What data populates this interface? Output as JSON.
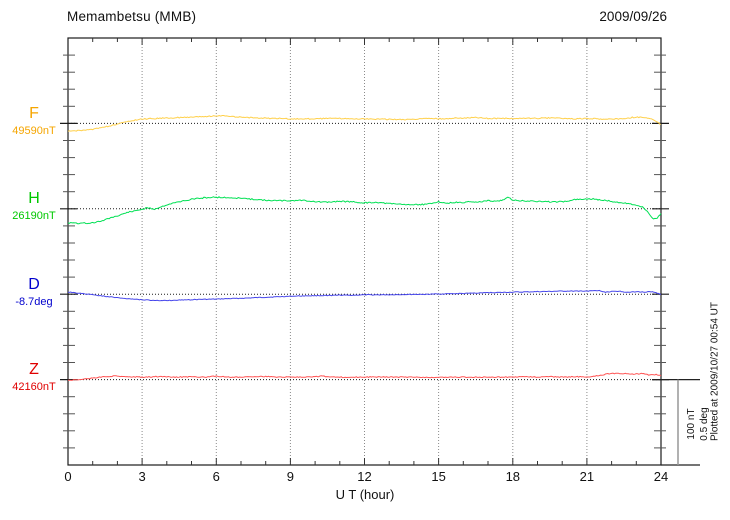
{
  "figure": {
    "title": "Memambetsu (MMB)",
    "date": "2009/09/26",
    "plotted_at": "Plotted at 2009/10/27 00:54 UT"
  },
  "chart_data": {
    "type": "line",
    "title": "Memambetsu (MMB)",
    "date": "2009/09/26",
    "xlabel": "U T (hour)",
    "x_range": [
      0,
      24
    ],
    "x_tick_labels": [
      "0",
      "3",
      "6",
      "9",
      "12",
      "15",
      "18",
      "21",
      "24"
    ],
    "x_major_tick_hours": 3,
    "x_minor_tick_hours": 1,
    "grid": {
      "vertical_dotted_every_hours": 3,
      "horizontal_dotted_baseline_per_channel": true
    },
    "scale_bar": {
      "amplitude_nt": "100 nT",
      "amplitude_deg": "0.5 deg",
      "nt_per_minor_division": 20
    },
    "plotted_at": "Plotted at 2009/10/27 00:54 UT",
    "points_format": "[UT hour, offset from baseline_value in series unit]",
    "series": [
      {
        "name": "F",
        "unit": "nT",
        "baseline_label": "49590nT",
        "baseline_value": 49590,
        "label_color": "#f5a500",
        "trace_color": "#ffd04a",
        "points": [
          [
            0,
            -9.4
          ],
          [
            0.5,
            -8.5
          ],
          [
            1,
            -6.8
          ],
          [
            1.5,
            -4.1
          ],
          [
            2,
            -0.8
          ],
          [
            2.5,
            2.7
          ],
          [
            3,
            5.1
          ],
          [
            3.5,
            5.7
          ],
          [
            4,
            6.3
          ],
          [
            4.5,
            6.9
          ],
          [
            5,
            7.4
          ],
          [
            5.5,
            8.0
          ],
          [
            6,
            8.6
          ],
          [
            6.3,
            9.0
          ],
          [
            6.6,
            8.2
          ],
          [
            7,
            7.2
          ],
          [
            7.5,
            6.6
          ],
          [
            8,
            6.0
          ],
          [
            8.5,
            5.9
          ],
          [
            9,
            5.3
          ],
          [
            9.5,
            5.3
          ],
          [
            10,
            5.4
          ],
          [
            10.5,
            5.8
          ],
          [
            11,
            5.9
          ],
          [
            11.5,
            5.4
          ],
          [
            12,
            5.3
          ],
          [
            12.5,
            4.8
          ],
          [
            13,
            4.7
          ],
          [
            13.5,
            4.6
          ],
          [
            14,
            4.7
          ],
          [
            14.5,
            5.8
          ],
          [
            15,
            5.3
          ],
          [
            15.5,
            5.9
          ],
          [
            16,
            6.4
          ],
          [
            16.5,
            7.0
          ],
          [
            17,
            5.9
          ],
          [
            17.5,
            5.8
          ],
          [
            18,
            5.9
          ],
          [
            18.5,
            6.0
          ],
          [
            19,
            5.9
          ],
          [
            19.5,
            6.4
          ],
          [
            20,
            5.9
          ],
          [
            20.5,
            5.3
          ],
          [
            21,
            5.9
          ],
          [
            21.5,
            5.3
          ],
          [
            22,
            4.7
          ],
          [
            22.5,
            5.9
          ],
          [
            23,
            7.5
          ],
          [
            23.3,
            7.0
          ],
          [
            23.6,
            5.3
          ],
          [
            23.8,
            2.4
          ],
          [
            24,
            -1.2
          ]
        ]
      },
      {
        "name": "H",
        "unit": "nT",
        "baseline_label": "26190nT",
        "baseline_value": 26190,
        "label_color": "#00c800",
        "trace_color": "#00e053",
        "points": [
          [
            0,
            -16.4
          ],
          [
            0.5,
            -17.0
          ],
          [
            1,
            -16.4
          ],
          [
            1.5,
            -12.9
          ],
          [
            2,
            -8.2
          ],
          [
            2.5,
            -3.5
          ],
          [
            3,
            -0.6
          ],
          [
            3.2,
            1.2
          ],
          [
            3.5,
            -0.5
          ],
          [
            4,
            4.7
          ],
          [
            4.5,
            8.2
          ],
          [
            5,
            11.2
          ],
          [
            5.5,
            12.9
          ],
          [
            6,
            13.5
          ],
          [
            6.5,
            12.9
          ],
          [
            7,
            12.3
          ],
          [
            7.5,
            11.2
          ],
          [
            8,
            10.0
          ],
          [
            8.5,
            9.4
          ],
          [
            9,
            9.4
          ],
          [
            9.5,
            10.0
          ],
          [
            10,
            8.2
          ],
          [
            10.5,
            7.6
          ],
          [
            11,
            8.8
          ],
          [
            11.5,
            8.2
          ],
          [
            12,
            7.0
          ],
          [
            12.5,
            7.6
          ],
          [
            13,
            5.9
          ],
          [
            13.5,
            5.3
          ],
          [
            14,
            4.7
          ],
          [
            14.5,
            5.3
          ],
          [
            15,
            8.2
          ],
          [
            15.3,
            6.5
          ],
          [
            15.6,
            7.6
          ],
          [
            16,
            7.0
          ],
          [
            16.3,
            8.8
          ],
          [
            16.6,
            7.6
          ],
          [
            17,
            10.0
          ],
          [
            17.3,
            8.8
          ],
          [
            17.6,
            10.0
          ],
          [
            17.8,
            13.5
          ],
          [
            18,
            10.0
          ],
          [
            18.5,
            9.4
          ],
          [
            19,
            8.8
          ],
          [
            19.5,
            8.2
          ],
          [
            20,
            8.2
          ],
          [
            20.5,
            10.6
          ],
          [
            21,
            11.2
          ],
          [
            21.3,
            11.7
          ],
          [
            21.5,
            10.6
          ],
          [
            22,
            8.8
          ],
          [
            22.5,
            7.0
          ],
          [
            23,
            4.7
          ],
          [
            23.3,
            1.2
          ],
          [
            23.5,
            -4.7
          ],
          [
            23.7,
            -12.3
          ],
          [
            23.85,
            -10.6
          ],
          [
            24,
            -5.9
          ]
        ]
      },
      {
        "name": "D",
        "unit": "deg",
        "baseline_label": "-8.7deg",
        "baseline_value": -8.7,
        "label_color": "#0000cd",
        "trace_color": "#4646eb",
        "points": [
          [
            0,
            0.012
          ],
          [
            0.5,
            0.006
          ],
          [
            1,
            -0.003
          ],
          [
            1.5,
            -0.012
          ],
          [
            2,
            -0.021
          ],
          [
            2.5,
            -0.027
          ],
          [
            3,
            -0.032
          ],
          [
            3.5,
            -0.036
          ],
          [
            4,
            -0.038
          ],
          [
            4.5,
            -0.035
          ],
          [
            5,
            -0.032
          ],
          [
            5.5,
            -0.03
          ],
          [
            6,
            -0.029
          ],
          [
            6.5,
            -0.026
          ],
          [
            7,
            -0.024
          ],
          [
            7.5,
            -0.021
          ],
          [
            8,
            -0.018
          ],
          [
            8.5,
            -0.015
          ],
          [
            9,
            -0.012
          ],
          [
            9.5,
            -0.01
          ],
          [
            10,
            -0.009
          ],
          [
            10.5,
            -0.007
          ],
          [
            11,
            -0.006
          ],
          [
            11.5,
            -0.006
          ],
          [
            12,
            -0.004
          ],
          [
            12.5,
            -0.004
          ],
          [
            13,
            -0.003
          ],
          [
            13.5,
            -0.002
          ],
          [
            14,
            -0.001
          ],
          [
            14.5,
            0.0
          ],
          [
            15,
            0.001
          ],
          [
            15.5,
            0.003
          ],
          [
            16,
            0.004
          ],
          [
            16.5,
            0.007
          ],
          [
            17,
            0.009
          ],
          [
            17.5,
            0.01
          ],
          [
            18,
            0.012
          ],
          [
            18.5,
            0.013
          ],
          [
            19,
            0.015
          ],
          [
            19.5,
            0.016
          ],
          [
            20,
            0.018
          ],
          [
            20.5,
            0.018
          ],
          [
            21,
            0.019
          ],
          [
            21.5,
            0.021
          ],
          [
            21.7,
            0.012
          ],
          [
            22,
            0.015
          ],
          [
            22.3,
            0.018
          ],
          [
            22.6,
            0.012
          ],
          [
            23,
            0.015
          ],
          [
            23.3,
            0.012
          ],
          [
            23.6,
            0.015
          ],
          [
            23.8,
            0.009
          ],
          [
            24,
            -0.003
          ]
        ]
      },
      {
        "name": "Z",
        "unit": "nT",
        "baseline_label": "42160nT",
        "baseline_value": 42160,
        "label_color": "#e00000",
        "trace_color": "#ff5353",
        "points": [
          [
            0,
            -0.6
          ],
          [
            0.5,
            0.0
          ],
          [
            1,
            1.8
          ],
          [
            1.5,
            3.5
          ],
          [
            2,
            4.1
          ],
          [
            2.5,
            3.5
          ],
          [
            3,
            2.9
          ],
          [
            3.5,
            3.5
          ],
          [
            4,
            3.5
          ],
          [
            4.5,
            2.9
          ],
          [
            5,
            3.5
          ],
          [
            5.5,
            2.9
          ],
          [
            6,
            4.1
          ],
          [
            6.5,
            2.9
          ],
          [
            7,
            2.9
          ],
          [
            7.5,
            3.5
          ],
          [
            8,
            3.5
          ],
          [
            8.5,
            2.9
          ],
          [
            9,
            2.9
          ],
          [
            9.5,
            3.1
          ],
          [
            10,
            3.5
          ],
          [
            10.3,
            4.1
          ],
          [
            10.6,
            2.9
          ],
          [
            11,
            2.9
          ],
          [
            11.5,
            2.9
          ],
          [
            12,
            2.9
          ],
          [
            12.5,
            3.1
          ],
          [
            13,
            2.9
          ],
          [
            13.5,
            2.9
          ],
          [
            14,
            2.9
          ],
          [
            14.5,
            2.6
          ],
          [
            15,
            2.4
          ],
          [
            15.5,
            2.9
          ],
          [
            16,
            2.9
          ],
          [
            16.5,
            2.9
          ],
          [
            17,
            2.9
          ],
          [
            17.5,
            2.9
          ],
          [
            18,
            2.9
          ],
          [
            18.5,
            3.5
          ],
          [
            19,
            2.9
          ],
          [
            19.5,
            3.5
          ],
          [
            20,
            2.9
          ],
          [
            20.5,
            3.5
          ],
          [
            21,
            2.9
          ],
          [
            21.5,
            4.7
          ],
          [
            21.8,
            6.5
          ],
          [
            22,
            7.1
          ],
          [
            22.5,
            7.1
          ],
          [
            23,
            6.5
          ],
          [
            23.3,
            7.1
          ],
          [
            23.5,
            5.3
          ],
          [
            23.8,
            5.9
          ],
          [
            24,
            4.7
          ]
        ]
      }
    ]
  }
}
